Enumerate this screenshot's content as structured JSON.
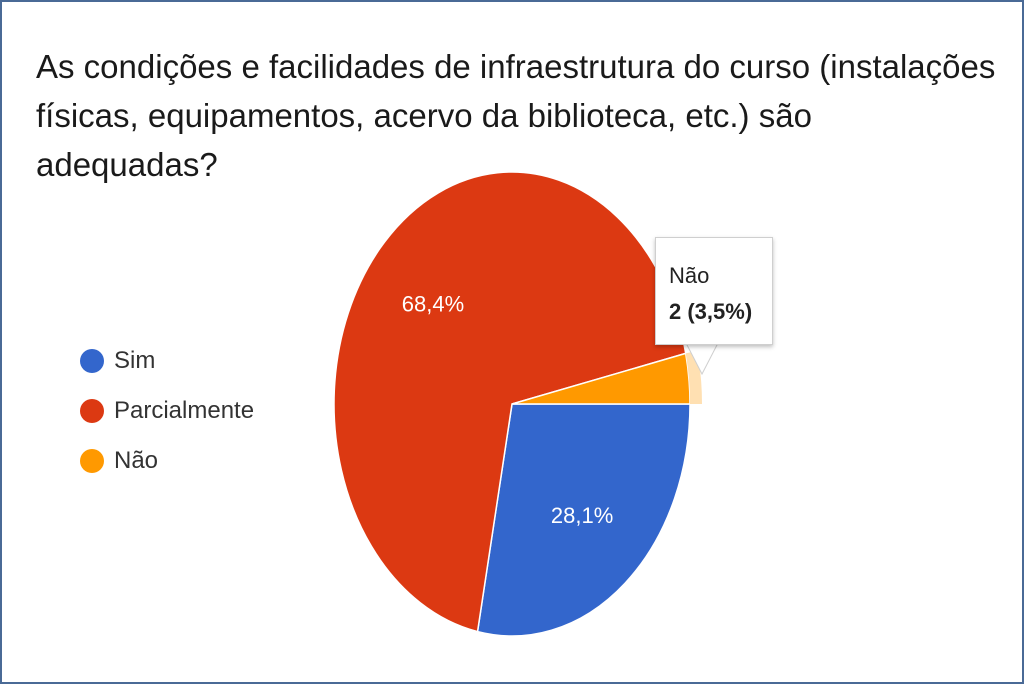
{
  "chart_data": {
    "type": "pie",
    "title": "As condições e facilidades de infraestrutura do curso (instalações físicas, equipamentos, acervo da biblioteca, etc.) são adequadas?",
    "legend_position": "left",
    "slices": [
      {
        "name": "Sim",
        "percent": 28.1,
        "label": "28,1%",
        "color": "#3366cc"
      },
      {
        "name": "Parcialmente",
        "percent": 68.4,
        "label": "68,4%",
        "color": "#dc3912"
      },
      {
        "name": "Não",
        "percent": 3.5,
        "label": "",
        "color": "#ff9900"
      }
    ],
    "tooltip": {
      "name": "Não",
      "value_text": "2 (3,5%)",
      "value": 2,
      "percent": 3.5
    }
  }
}
